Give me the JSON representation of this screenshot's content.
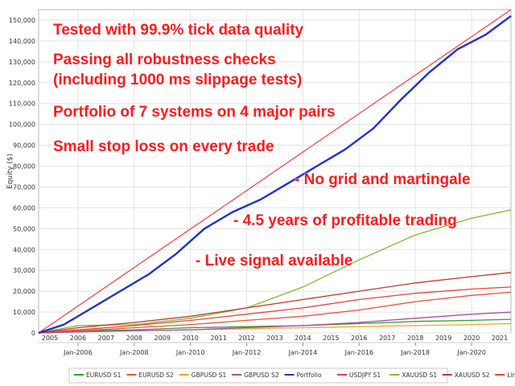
{
  "chart_data": {
    "type": "line",
    "ylabel": "Equity ($)",
    "ylim": [
      0,
      155000
    ],
    "xlim": [
      2004.6,
      2021.4
    ],
    "yticks": [
      0,
      10000,
      20000,
      30000,
      40000,
      50000,
      60000,
      70000,
      80000,
      90000,
      100000,
      110000,
      120000,
      130000,
      140000,
      150000
    ],
    "ytick_labels": [
      "0",
      "10,000",
      "20,000",
      "30,000",
      "40,000",
      "50,000",
      "60,000",
      "70,000",
      "80,000",
      "90,000",
      "100,000",
      "110,000",
      "120,000",
      "130,000",
      "140,000",
      "150,000"
    ],
    "year_ticks": [
      "2005",
      "2006",
      "2007",
      "2008",
      "2009",
      "2010",
      "2011",
      "2012",
      "2013",
      "2014",
      "2015",
      "2016",
      "2017",
      "2018",
      "2019",
      "2020",
      "2021"
    ],
    "major_ticks": [
      {
        "x": 2006,
        "label": "Jan-2006"
      },
      {
        "x": 2008,
        "label": "Jan-2008"
      },
      {
        "x": 2010,
        "label": "Jan-2010"
      },
      {
        "x": 2012,
        "label": "Jan-2012"
      },
      {
        "x": 2014,
        "label": "Jan-2014"
      },
      {
        "x": 2016,
        "label": "Jan-2016"
      },
      {
        "x": 2018,
        "label": "Jan-2018"
      },
      {
        "x": 2020,
        "label": "Jan-2020"
      }
    ],
    "grid": true,
    "legend_position": "bottom",
    "series": [
      {
        "name": "EURUSD S1",
        "color": "#2ca02c",
        "x": [
          2004.6,
          2006,
          2008,
          2010,
          2012,
          2014,
          2016,
          2018,
          2020,
          2021.4
        ],
        "y": [
          0,
          1000,
          1500,
          2500,
          3000,
          3500,
          4500,
          5500,
          6000,
          6500
        ]
      },
      {
        "name": "EURUSD S2",
        "color": "#e8553a",
        "x": [
          2004.6,
          2006,
          2008,
          2010,
          2012,
          2014,
          2016,
          2018,
          2020,
          2021.4
        ],
        "y": [
          0,
          1000,
          2500,
          4000,
          6000,
          8000,
          11000,
          15000,
          18000,
          19500
        ]
      },
      {
        "name": "GBPUSD S1",
        "color": "#f5a623",
        "x": [
          2004.6,
          2006,
          2008,
          2010,
          2012,
          2014,
          2016,
          2018,
          2020,
          2021.4
        ],
        "y": [
          0,
          500,
          1000,
          1500,
          2000,
          2500,
          3000,
          3500,
          4000,
          4500
        ]
      },
      {
        "name": "GBPUSD S2",
        "color": "#a64ca6",
        "x": [
          2004.6,
          2006,
          2008,
          2010,
          2012,
          2014,
          2016,
          2018,
          2020,
          2021.4
        ],
        "y": [
          0,
          500,
          1000,
          1500,
          2500,
          3500,
          5000,
          7000,
          9000,
          10000
        ]
      },
      {
        "name": "Portfolio",
        "color": "#1f2fd6",
        "x": [
          2004.6,
          2005.5,
          2006.5,
          2007.5,
          2008.5,
          2009.5,
          2010.5,
          2011.5,
          2012.5,
          2013.5,
          2014.5,
          2015.5,
          2016.5,
          2017.5,
          2018.5,
          2019.5,
          2020.5,
          2021.4
        ],
        "y": [
          0,
          4000,
          12000,
          20000,
          28000,
          38000,
          50000,
          58000,
          64000,
          72000,
          80000,
          88000,
          98000,
          112000,
          125000,
          136000,
          143000,
          152000
        ]
      },
      {
        "name": "USDJPY S1",
        "color": "#e0453a",
        "x": [
          2004.6,
          2006,
          2008,
          2010,
          2012,
          2014,
          2016,
          2018,
          2020,
          2021.4
        ],
        "y": [
          0,
          1500,
          3500,
          6000,
          9000,
          12000,
          16000,
          19000,
          21000,
          22000
        ]
      },
      {
        "name": "XAUUSD S1",
        "color": "#7cba2c",
        "x": [
          2004.6,
          2006,
          2008,
          2010,
          2012,
          2014,
          2016,
          2018,
          2020,
          2021.4
        ],
        "y": [
          0,
          3500,
          4000,
          7000,
          12000,
          22000,
          35000,
          47000,
          55000,
          59000
        ]
      },
      {
        "name": "XAUUSD S2",
        "color": "#c0392b",
        "x": [
          2004.6,
          2006,
          2008,
          2010,
          2012,
          2014,
          2016,
          2018,
          2020,
          2021.4
        ],
        "y": [
          0,
          2500,
          5000,
          8000,
          12000,
          16000,
          20000,
          24000,
          27000,
          29000
        ]
      },
      {
        "name": "Lines",
        "color": "#ff3b3b",
        "x": [
          2004.6,
          2021.4
        ],
        "y": [
          0,
          155000
        ]
      }
    ],
    "annotations": [
      "Tested with 99.9% tick data quality",
      "Passing all robustness checks",
      "(including 1000 ms slippage tests)",
      "Portfolio of 7 systems on 4 major pairs",
      "Small stop loss on every trade",
      "- No grid and martingale",
      "- 4.5 years of profitable trading",
      "- Live signal available"
    ]
  }
}
